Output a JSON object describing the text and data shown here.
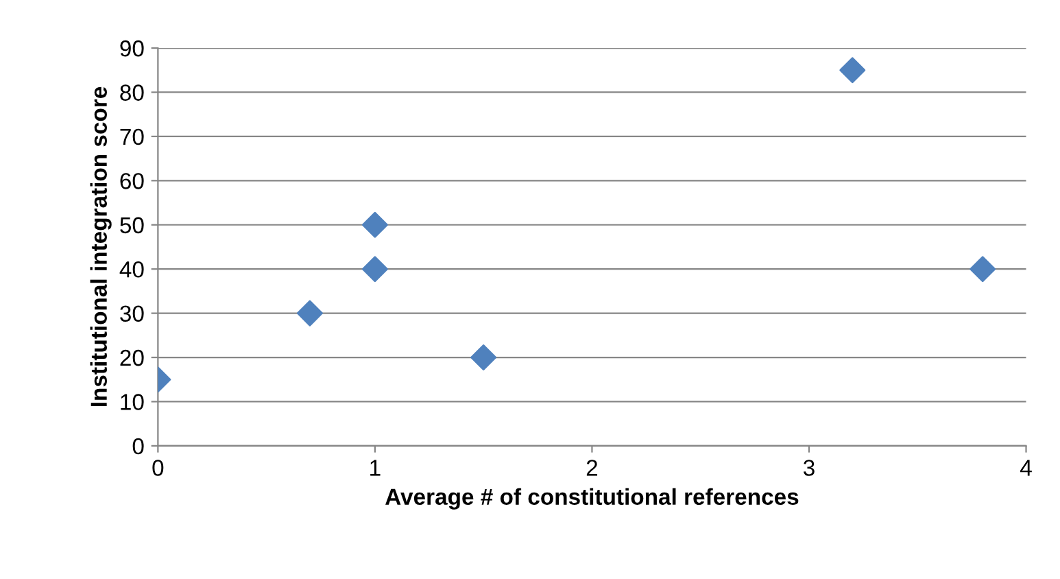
{
  "chart_data": {
    "type": "scatter",
    "xlabel": "Average # of constitutional references",
    "ylabel": "Institutional integration score",
    "x": [
      0,
      0.7,
      1,
      1,
      1.5,
      3.2,
      3.8
    ],
    "series": [
      {
        "color": "#4f81bd",
        "values": [
          15,
          30,
          50,
          40,
          20,
          85,
          40
        ]
      }
    ],
    "xlim": [
      0,
      4
    ],
    "xticks": [
      0,
      1,
      2,
      3,
      4
    ],
    "ylim": [
      0,
      90
    ],
    "yticks": [
      0,
      10,
      20,
      30,
      40,
      50,
      60,
      70,
      80,
      90
    ],
    "grid": "y",
    "marker": "diamond",
    "legend": false
  }
}
